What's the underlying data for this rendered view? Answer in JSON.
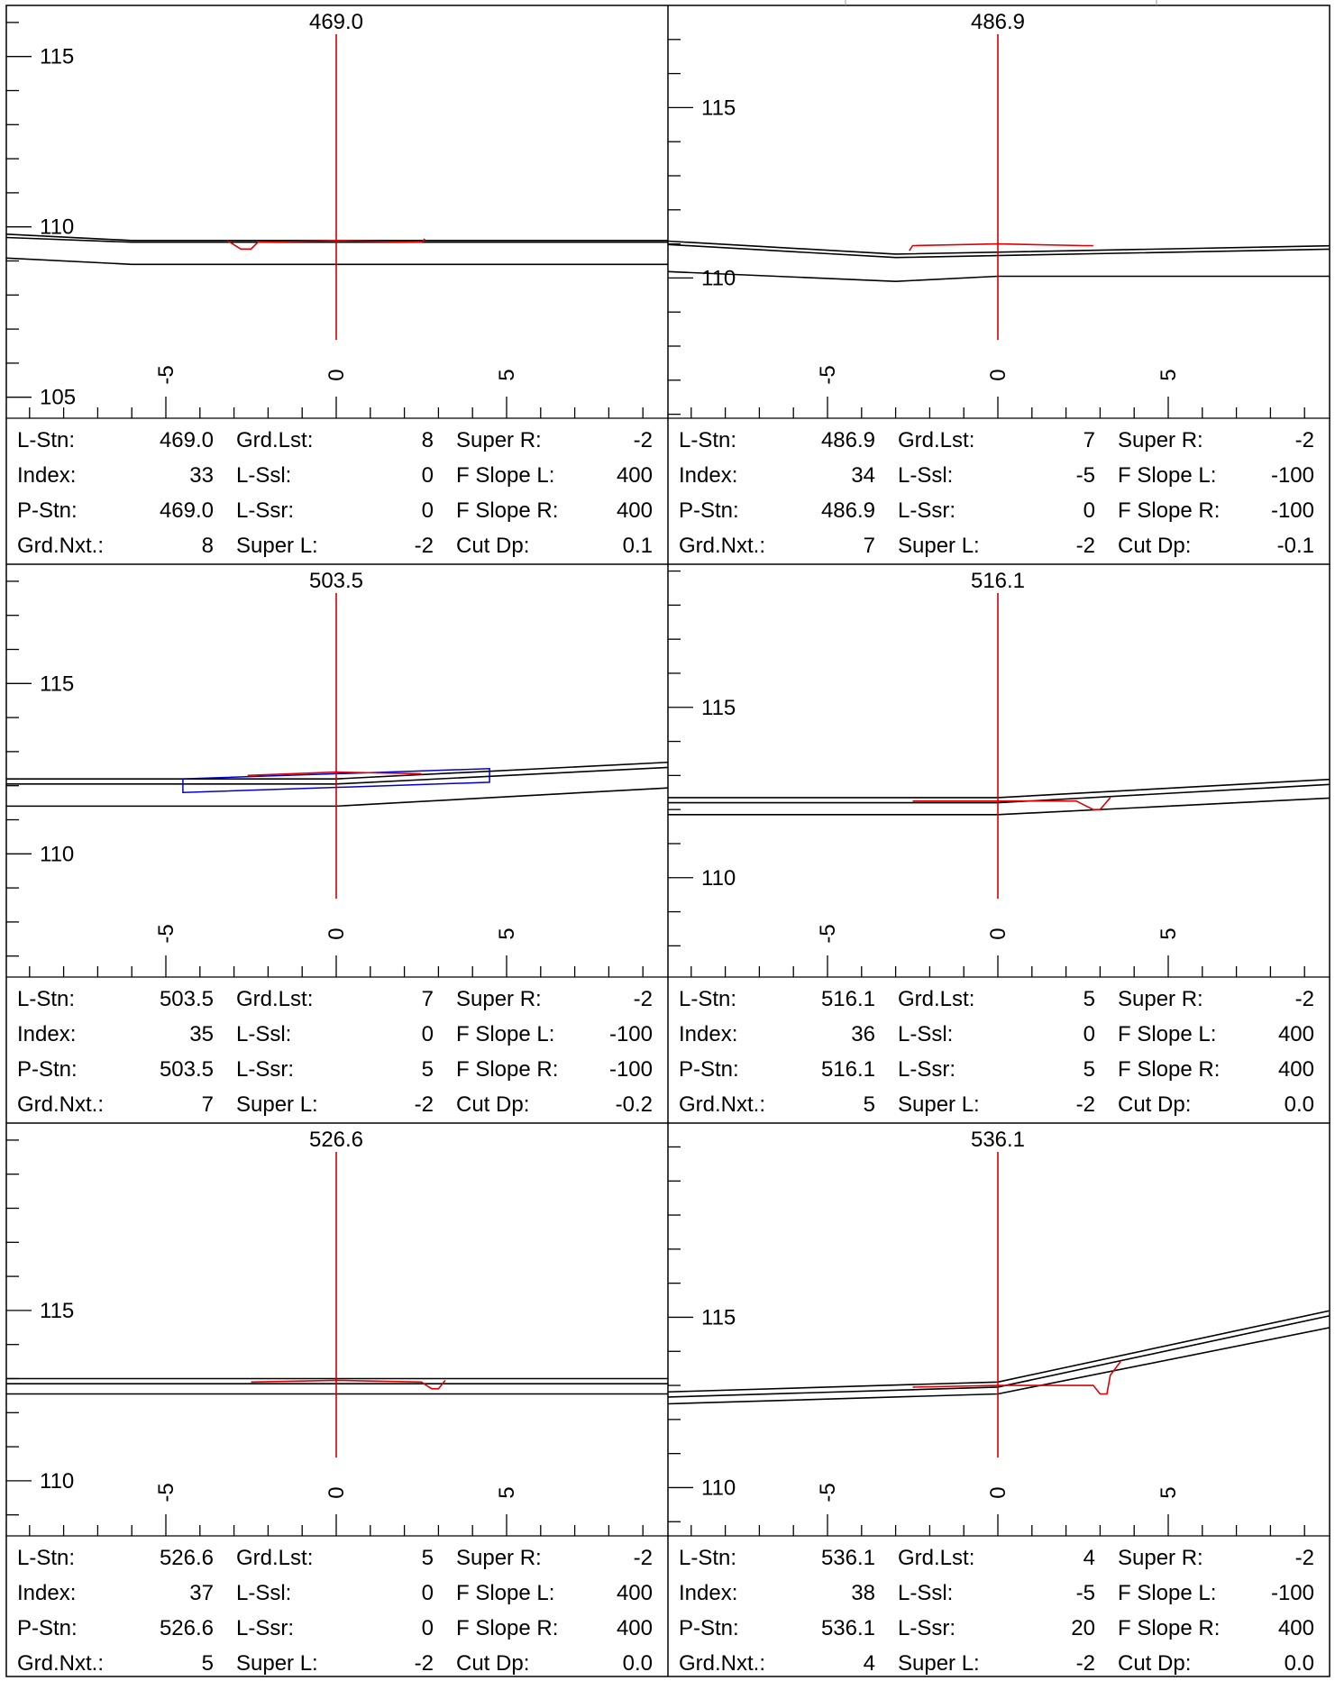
{
  "colors": {
    "line": "#000000",
    "centerline": "#d00000",
    "design": "#e00000",
    "box": "#0000cc",
    "border": "#000000"
  },
  "field_labels": {
    "l_stn": "L-Stn:",
    "index": "Index:",
    "p_stn": "P-Stn:",
    "grd_nxt": "Grd.Nxt.:",
    "grd_lst": "Grd.Lst:",
    "l_ssl": "L-Ssl:",
    "l_ssr": "L-Ssr:",
    "super_l": "Super L:",
    "super_r": "Super R:",
    "f_slope_l": "F Slope L:",
    "f_slope_r": "F Slope R:",
    "cut_dp": "Cut Dp:"
  },
  "x_ticks": [
    -5,
    0,
    5
  ],
  "x_tick_labels": [
    "-5",
    "0",
    "5"
  ],
  "panels": [
    {
      "station": "469.0",
      "elev_range": [
        104.5,
        116.5
      ],
      "y_labels": [
        {
          "v": 115,
          "text": "115"
        },
        {
          "v": 110,
          "text": "110"
        },
        {
          "v": 105,
          "text": "105"
        }
      ],
      "values": {
        "l_stn": "469.0",
        "index": "33",
        "p_stn": "469.0",
        "grd_nxt": "8",
        "grd_lst": "8",
        "l_ssl": "0",
        "l_ssr": "0",
        "super_l": "-2",
        "super_r": "-2",
        "f_slope_l": "400",
        "f_slope_r": "400",
        "cut_dp": "0.1"
      },
      "ground": [
        [
          [
            -10,
            109.8
          ],
          [
            -6,
            109.6
          ],
          [
            10,
            109.6
          ]
        ],
        [
          [
            -10,
            109.7
          ],
          [
            -6,
            109.55
          ],
          [
            10,
            109.55
          ]
        ],
        [
          [
            -10,
            109.1
          ],
          [
            -6,
            108.9
          ],
          [
            10,
            108.9
          ]
        ]
      ],
      "design": [
        [
          -3.2,
          109.6
        ],
        [
          -2.8,
          109.35
        ],
        [
          -2.5,
          109.35
        ],
        [
          -2.3,
          109.55
        ],
        [
          0,
          109.6
        ],
        [
          2.5,
          109.55
        ],
        [
          2.6,
          109.65
        ]
      ],
      "box": null
    },
    {
      "station": "486.9",
      "elev_range": [
        106,
        118
      ],
      "y_labels": [
        {
          "v": 115,
          "text": "115"
        },
        {
          "v": 110,
          "text": "110"
        }
      ],
      "values": {
        "l_stn": "486.9",
        "index": "34",
        "p_stn": "486.9",
        "grd_nxt": "7",
        "grd_lst": "7",
        "l_ssl": "-5",
        "l_ssr": "0",
        "super_l": "-2",
        "super_r": "-2",
        "f_slope_l": "-100",
        "f_slope_r": "-100",
        "cut_dp": "-0.1"
      },
      "ground": [
        [
          [
            -10,
            111.1
          ],
          [
            -3,
            110.7
          ],
          [
            10,
            110.95
          ]
        ],
        [
          [
            -10,
            111.0
          ],
          [
            -3,
            110.6
          ],
          [
            10,
            110.85
          ]
        ],
        [
          [
            -10,
            110.2
          ],
          [
            -3,
            109.9
          ],
          [
            0,
            110.05
          ],
          [
            10,
            110.05
          ]
        ]
      ],
      "design": [
        [
          -2.6,
          110.8
        ],
        [
          -2.5,
          110.95
        ],
        [
          0,
          111.0
        ],
        [
          2.5,
          110.95
        ],
        [
          2.8,
          110.95
        ]
      ],
      "box": null
    },
    {
      "station": "503.5",
      "elev_range": [
        106.5,
        118.5
      ],
      "y_labels": [
        {
          "v": 115,
          "text": "115"
        },
        {
          "v": 110,
          "text": "110"
        }
      ],
      "values": {
        "l_stn": "503.5",
        "index": "35",
        "p_stn": "503.5",
        "grd_nxt": "7",
        "grd_lst": "7",
        "l_ssl": "0",
        "l_ssr": "5",
        "super_l": "-2",
        "super_r": "-2",
        "f_slope_l": "-100",
        "f_slope_r": "-100",
        "cut_dp": "-0.2"
      },
      "ground": [
        [
          [
            -10,
            112.2
          ],
          [
            0,
            112.2
          ],
          [
            10,
            112.7
          ]
        ],
        [
          [
            -10,
            112.05
          ],
          [
            0,
            112.05
          ],
          [
            10,
            112.55
          ]
        ],
        [
          [
            -10,
            111.4
          ],
          [
            0,
            111.4
          ],
          [
            10,
            111.95
          ]
        ]
      ],
      "design": [
        [
          -2.6,
          112.3
        ],
        [
          0,
          112.4
        ],
        [
          2.5,
          112.35
        ]
      ],
      "box": [
        [
          -4.5,
          112.2
        ],
        [
          4.5,
          112.5
        ],
        [
          4.5,
          112.1
        ],
        [
          -4.5,
          111.8
        ]
      ]
    },
    {
      "station": "516.1",
      "elev_range": [
        107.2,
        119.2
      ],
      "y_labels": [
        {
          "v": 115,
          "text": "115"
        },
        {
          "v": 110,
          "text": "110"
        }
      ],
      "values": {
        "l_stn": "516.1",
        "index": "36",
        "p_stn": "516.1",
        "grd_nxt": "5",
        "grd_lst": "5",
        "l_ssl": "0",
        "l_ssr": "5",
        "super_l": "-2",
        "super_r": "-2",
        "f_slope_l": "400",
        "f_slope_r": "400",
        "cut_dp": "0.0"
      },
      "ground": [
        [
          [
            -10,
            112.35
          ],
          [
            0,
            112.35
          ],
          [
            10,
            112.9
          ]
        ],
        [
          [
            -10,
            112.2
          ],
          [
            0,
            112.2
          ],
          [
            10,
            112.75
          ]
        ],
        [
          [
            -10,
            111.85
          ],
          [
            0,
            111.85
          ],
          [
            10,
            112.35
          ]
        ]
      ],
      "design": [
        [
          -2.5,
          112.25
        ],
        [
          0,
          112.25
        ],
        [
          2.3,
          112.25
        ],
        [
          2.8,
          112.0
        ],
        [
          3.0,
          112.0
        ],
        [
          3.3,
          112.35
        ]
      ],
      "box": null
    },
    {
      "station": "526.6",
      "elev_range": [
        108.5,
        120.5
      ],
      "y_labels": [
        {
          "v": 115,
          "text": "115"
        },
        {
          "v": 110,
          "text": "110"
        }
      ],
      "values": {
        "l_stn": "526.6",
        "index": "37",
        "p_stn": "526.6",
        "grd_nxt": "5",
        "grd_lst": "5",
        "l_ssl": "0",
        "l_ssr": "0",
        "super_l": "-2",
        "super_r": "-2",
        "f_slope_l": "400",
        "f_slope_r": "400",
        "cut_dp": "0.0"
      },
      "ground": [
        [
          [
            -10,
            113.0
          ],
          [
            10,
            113.0
          ]
        ],
        [
          [
            -10,
            112.85
          ],
          [
            10,
            112.85
          ]
        ],
        [
          [
            -10,
            112.55
          ],
          [
            10,
            112.55
          ]
        ]
      ],
      "design": [
        [
          -2.5,
          112.9
        ],
        [
          0,
          112.95
        ],
        [
          2.5,
          112.9
        ],
        [
          2.8,
          112.7
        ],
        [
          3.0,
          112.7
        ],
        [
          3.2,
          112.95
        ]
      ],
      "box": null
    },
    {
      "station": "536.1",
      "elev_range": [
        108.7,
        120.7
      ],
      "y_labels": [
        {
          "v": 115,
          "text": "115"
        },
        {
          "v": 110,
          "text": "110"
        }
      ],
      "values": {
        "l_stn": "536.1",
        "index": "38",
        "p_stn": "536.1",
        "grd_nxt": "4",
        "grd_lst": "4",
        "l_ssl": "-5",
        "l_ssr": "20",
        "super_l": "-2",
        "super_r": "-2",
        "f_slope_l": "-100",
        "f_slope_r": "400",
        "cut_dp": "0.0"
      },
      "ground": [
        [
          [
            -10,
            112.8
          ],
          [
            0,
            113.1
          ],
          [
            10,
            115.25
          ]
        ],
        [
          [
            -10,
            112.65
          ],
          [
            0,
            112.95
          ],
          [
            10,
            115.1
          ]
        ],
        [
          [
            -10,
            112.45
          ],
          [
            0,
            112.75
          ],
          [
            10,
            114.75
          ]
        ]
      ],
      "design": [
        [
          -2.5,
          112.95
        ],
        [
          0,
          113.0
        ],
        [
          1.5,
          113.0
        ],
        [
          2.8,
          113.0
        ],
        [
          3.0,
          112.75
        ],
        [
          3.2,
          112.75
        ],
        [
          3.3,
          113.3
        ],
        [
          3.6,
          113.7
        ]
      ],
      "box": null
    }
  ]
}
